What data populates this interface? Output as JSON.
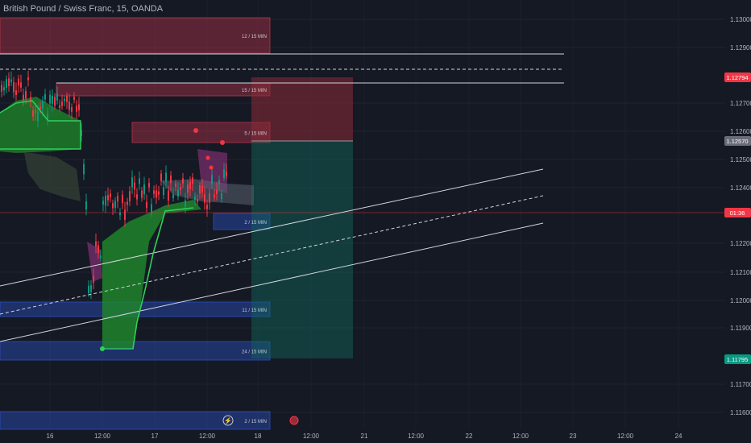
{
  "header": {
    "title": "British Pound / Swiss Franc, 15, OANDA"
  },
  "chart_data": {
    "type": "candlestick",
    "symbol": "British Pound / Swiss Franc",
    "interval": "15",
    "broker": "OANDA",
    "y_ticks": [
      "1.13000",
      "1.12900",
      "1.12700",
      "1.12600",
      "1.12500",
      "1.12400",
      "1.12200",
      "1.12100",
      "1.12000",
      "1.11900",
      "1.11700",
      "1.11600"
    ],
    "x_ticks": [
      "16",
      "12:00",
      "17",
      "12:00",
      "18",
      "12:00",
      "21",
      "12:00",
      "22",
      "12:00",
      "23",
      "12:00",
      "24"
    ],
    "price_badges": [
      {
        "label": "1.12794",
        "color": "#f23645"
      },
      {
        "label": "1.12570",
        "color": "#6a6d78"
      },
      {
        "label": "01:36",
        "color": "#f23645"
      },
      {
        "label": "1.11795",
        "color": "#089981"
      }
    ],
    "zones": [
      {
        "label": "12 / 15 MIN",
        "kind": "supply"
      },
      {
        "label": "15 / 15 MIN",
        "kind": "supply"
      },
      {
        "label": "5 / 15 MIN",
        "kind": "supply"
      },
      {
        "label": "2 / 15 MIN",
        "kind": "demand"
      },
      {
        "label": "11 / 15 MIN",
        "kind": "demand"
      },
      {
        "label": "24 / 15 MIN",
        "kind": "demand"
      },
      {
        "label": "2 / 15 MIN",
        "kind": "demand"
      }
    ],
    "position": {
      "direction": "short",
      "entry": 1.1257,
      "stop": 1.12794,
      "target": 1.11795
    },
    "colors": {
      "up": "#089981",
      "down": "#f23645",
      "supply": "#b2334a",
      "demand": "#2a4fbf",
      "cloud_bull": "#1f8a2a",
      "cloud_bear": "#7a2f6e",
      "background": "#151924"
    }
  }
}
